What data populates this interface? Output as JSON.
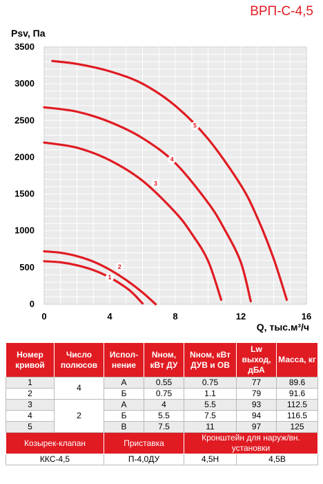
{
  "header": {
    "title": "ВРП-С-4,5"
  },
  "chart_data": {
    "type": "line",
    "ylabel": "Psv, Па",
    "xlabel": "Q, тыс.м³/ч",
    "xlim": [
      0,
      16
    ],
    "ylim": [
      0,
      3500
    ],
    "xticks": [
      "0",
      "4",
      "8",
      "12",
      "16"
    ],
    "yticks": [
      "0",
      "500",
      "1000",
      "1500",
      "2000",
      "2500",
      "3000",
      "3500"
    ],
    "grid": true,
    "series": [
      {
        "name": "1",
        "x": [
          0.0,
          1.0,
          2.0,
          3.0,
          4.0,
          5.0,
          5.5,
          6.0
        ],
        "y": [
          585,
          570,
          530,
          465,
          365,
          225,
          130,
          10
        ]
      },
      {
        "name": "2",
        "x": [
          0.0,
          1.0,
          2.0,
          3.0,
          4.0,
          5.0,
          6.0,
          6.8
        ],
        "y": [
          720,
          700,
          655,
          580,
          470,
          330,
          160,
          0
        ]
      },
      {
        "name": "3",
        "x": [
          0.0,
          2.0,
          4.0,
          6.0,
          8.0,
          9.0,
          10.0,
          10.8
        ],
        "y": [
          2200,
          2130,
          1960,
          1680,
          1250,
          960,
          590,
          60
        ]
      },
      {
        "name": "4",
        "x": [
          0.0,
          2.0,
          4.0,
          6.0,
          8.0,
          10.0,
          11.0,
          12.0,
          12.6
        ],
        "y": [
          2680,
          2620,
          2480,
          2260,
          1920,
          1380,
          1020,
          570,
          40
        ]
      },
      {
        "name": "5",
        "x": [
          0.5,
          2.0,
          4.0,
          6.0,
          8.0,
          10.0,
          12.0,
          13.0,
          14.0,
          14.8
        ],
        "y": [
          3310,
          3270,
          3170,
          3000,
          2700,
          2250,
          1620,
          1180,
          620,
          60
        ]
      }
    ],
    "label_points": [
      {
        "name": "1",
        "x": 4.0,
        "y": 365
      },
      {
        "name": "2",
        "x": 4.6,
        "y": 510
      },
      {
        "name": "3",
        "x": 6.8,
        "y": 1640
      },
      {
        "name": "4",
        "x": 7.8,
        "y": 1970
      },
      {
        "name": "5",
        "x": 9.2,
        "y": 2430
      }
    ],
    "color": "#e01b22"
  },
  "table": {
    "headers": [
      "Номер кривой",
      "Число полюсов",
      "Испол-нение",
      "Nном, кВт ДУ",
      "Nном, кВт ДУВ и ОВ",
      "Lw выход, дБА",
      "Масса, кг"
    ],
    "rows": [
      {
        "curve": "1",
        "execution": "А",
        "n_du": "0.55",
        "n_duv": "0.75",
        "lw": "77",
        "mass": "89.6"
      },
      {
        "curve": "2",
        "execution": "Б",
        "n_du": "0.75",
        "n_duv": "1.1",
        "lw": "79",
        "mass": "91.6"
      },
      {
        "curve": "3",
        "execution": "А",
        "n_du": "4",
        "n_duv": "5.5",
        "lw": "93",
        "mass": "112.5"
      },
      {
        "curve": "4",
        "execution": "Б",
        "n_du": "5.5",
        "n_duv": "7.5",
        "lw": "94",
        "mass": "116.5"
      },
      {
        "curve": "5",
        "execution": "В",
        "n_du": "7.5",
        "n_duv": "11",
        "lw": "97",
        "mass": "125"
      }
    ],
    "poles_group1": "4",
    "poles_group2": "2",
    "accessories": {
      "headers": [
        "Козырек-клапан",
        "Приставка",
        "Кронштейн для наруж/вн. установки"
      ],
      "values": [
        "ККС-4,5",
        "П-4,0ДУ",
        "4,5Н",
        "4,5В"
      ]
    }
  }
}
